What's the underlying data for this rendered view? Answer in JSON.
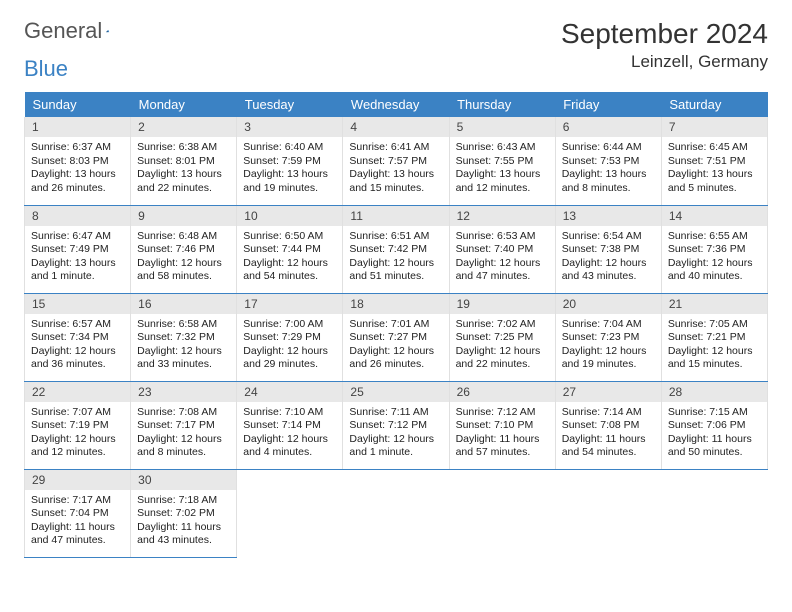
{
  "logo": {
    "text1": "General",
    "text2": "Blue"
  },
  "title": "September 2024",
  "location": "Leinzell, Germany",
  "day_headers": [
    "Sunday",
    "Monday",
    "Tuesday",
    "Wednesday",
    "Thursday",
    "Friday",
    "Saturday"
  ],
  "colors": {
    "header_bg": "#3b82c4",
    "header_fg": "#ffffff",
    "daynum_bg": "#e8e8e8",
    "border_light": "#e0e0e0",
    "text": "#222222"
  },
  "days": [
    {
      "n": "1",
      "sunrise": "Sunrise: 6:37 AM",
      "sunset": "Sunset: 8:03 PM",
      "daylight": "Daylight: 13 hours and 26 minutes."
    },
    {
      "n": "2",
      "sunrise": "Sunrise: 6:38 AM",
      "sunset": "Sunset: 8:01 PM",
      "daylight": "Daylight: 13 hours and 22 minutes."
    },
    {
      "n": "3",
      "sunrise": "Sunrise: 6:40 AM",
      "sunset": "Sunset: 7:59 PM",
      "daylight": "Daylight: 13 hours and 19 minutes."
    },
    {
      "n": "4",
      "sunrise": "Sunrise: 6:41 AM",
      "sunset": "Sunset: 7:57 PM",
      "daylight": "Daylight: 13 hours and 15 minutes."
    },
    {
      "n": "5",
      "sunrise": "Sunrise: 6:43 AM",
      "sunset": "Sunset: 7:55 PM",
      "daylight": "Daylight: 13 hours and 12 minutes."
    },
    {
      "n": "6",
      "sunrise": "Sunrise: 6:44 AM",
      "sunset": "Sunset: 7:53 PM",
      "daylight": "Daylight: 13 hours and 8 minutes."
    },
    {
      "n": "7",
      "sunrise": "Sunrise: 6:45 AM",
      "sunset": "Sunset: 7:51 PM",
      "daylight": "Daylight: 13 hours and 5 minutes."
    },
    {
      "n": "8",
      "sunrise": "Sunrise: 6:47 AM",
      "sunset": "Sunset: 7:49 PM",
      "daylight": "Daylight: 13 hours and 1 minute."
    },
    {
      "n": "9",
      "sunrise": "Sunrise: 6:48 AM",
      "sunset": "Sunset: 7:46 PM",
      "daylight": "Daylight: 12 hours and 58 minutes."
    },
    {
      "n": "10",
      "sunrise": "Sunrise: 6:50 AM",
      "sunset": "Sunset: 7:44 PM",
      "daylight": "Daylight: 12 hours and 54 minutes."
    },
    {
      "n": "11",
      "sunrise": "Sunrise: 6:51 AM",
      "sunset": "Sunset: 7:42 PM",
      "daylight": "Daylight: 12 hours and 51 minutes."
    },
    {
      "n": "12",
      "sunrise": "Sunrise: 6:53 AM",
      "sunset": "Sunset: 7:40 PM",
      "daylight": "Daylight: 12 hours and 47 minutes."
    },
    {
      "n": "13",
      "sunrise": "Sunrise: 6:54 AM",
      "sunset": "Sunset: 7:38 PM",
      "daylight": "Daylight: 12 hours and 43 minutes."
    },
    {
      "n": "14",
      "sunrise": "Sunrise: 6:55 AM",
      "sunset": "Sunset: 7:36 PM",
      "daylight": "Daylight: 12 hours and 40 minutes."
    },
    {
      "n": "15",
      "sunrise": "Sunrise: 6:57 AM",
      "sunset": "Sunset: 7:34 PM",
      "daylight": "Daylight: 12 hours and 36 minutes."
    },
    {
      "n": "16",
      "sunrise": "Sunrise: 6:58 AM",
      "sunset": "Sunset: 7:32 PM",
      "daylight": "Daylight: 12 hours and 33 minutes."
    },
    {
      "n": "17",
      "sunrise": "Sunrise: 7:00 AM",
      "sunset": "Sunset: 7:29 PM",
      "daylight": "Daylight: 12 hours and 29 minutes."
    },
    {
      "n": "18",
      "sunrise": "Sunrise: 7:01 AM",
      "sunset": "Sunset: 7:27 PM",
      "daylight": "Daylight: 12 hours and 26 minutes."
    },
    {
      "n": "19",
      "sunrise": "Sunrise: 7:02 AM",
      "sunset": "Sunset: 7:25 PM",
      "daylight": "Daylight: 12 hours and 22 minutes."
    },
    {
      "n": "20",
      "sunrise": "Sunrise: 7:04 AM",
      "sunset": "Sunset: 7:23 PM",
      "daylight": "Daylight: 12 hours and 19 minutes."
    },
    {
      "n": "21",
      "sunrise": "Sunrise: 7:05 AM",
      "sunset": "Sunset: 7:21 PM",
      "daylight": "Daylight: 12 hours and 15 minutes."
    },
    {
      "n": "22",
      "sunrise": "Sunrise: 7:07 AM",
      "sunset": "Sunset: 7:19 PM",
      "daylight": "Daylight: 12 hours and 12 minutes."
    },
    {
      "n": "23",
      "sunrise": "Sunrise: 7:08 AM",
      "sunset": "Sunset: 7:17 PM",
      "daylight": "Daylight: 12 hours and 8 minutes."
    },
    {
      "n": "24",
      "sunrise": "Sunrise: 7:10 AM",
      "sunset": "Sunset: 7:14 PM",
      "daylight": "Daylight: 12 hours and 4 minutes."
    },
    {
      "n": "25",
      "sunrise": "Sunrise: 7:11 AM",
      "sunset": "Sunset: 7:12 PM",
      "daylight": "Daylight: 12 hours and 1 minute."
    },
    {
      "n": "26",
      "sunrise": "Sunrise: 7:12 AM",
      "sunset": "Sunset: 7:10 PM",
      "daylight": "Daylight: 11 hours and 57 minutes."
    },
    {
      "n": "27",
      "sunrise": "Sunrise: 7:14 AM",
      "sunset": "Sunset: 7:08 PM",
      "daylight": "Daylight: 11 hours and 54 minutes."
    },
    {
      "n": "28",
      "sunrise": "Sunrise: 7:15 AM",
      "sunset": "Sunset: 7:06 PM",
      "daylight": "Daylight: 11 hours and 50 minutes."
    },
    {
      "n": "29",
      "sunrise": "Sunrise: 7:17 AM",
      "sunset": "Sunset: 7:04 PM",
      "daylight": "Daylight: 11 hours and 47 minutes."
    },
    {
      "n": "30",
      "sunrise": "Sunrise: 7:18 AM",
      "sunset": "Sunset: 7:02 PM",
      "daylight": "Daylight: 11 hours and 43 minutes."
    }
  ]
}
